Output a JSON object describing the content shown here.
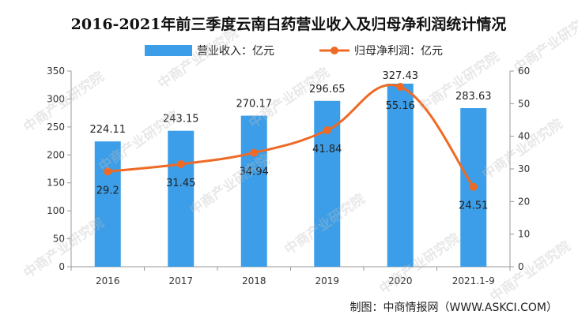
{
  "chart_data": {
    "type": "bar+line",
    "title": "2016-2021年前三季度云南白药营业收入及归母净利润统计情况",
    "categories": [
      "2016",
      "2017",
      "2018",
      "2019",
      "2020",
      "2021.1-9"
    ],
    "series": [
      {
        "name": "营业收入：亿元",
        "type": "bar",
        "axis": "left",
        "color": "#3c9ee8",
        "values": [
          224.11,
          243.15,
          270.17,
          296.65,
          327.43,
          283.63
        ]
      },
      {
        "name": "归母净利润：亿元",
        "type": "line",
        "axis": "right",
        "color": "#ef6a26",
        "values": [
          29.2,
          31.45,
          34.94,
          41.84,
          55.16,
          24.51
        ]
      }
    ],
    "value_labels": {
      "bar": [
        "224.11",
        "243.15",
        "270.17",
        "296.65",
        "327.43",
        "283.63"
      ],
      "line": [
        "29.2",
        "31.45",
        "34.94",
        "41.84",
        "55.16",
        "24.51"
      ]
    },
    "y_left": {
      "min": 0,
      "max": 350,
      "ticks": [
        "0",
        "50",
        "100",
        "150",
        "200",
        "250",
        "300",
        "350"
      ]
    },
    "y_right": {
      "min": 0,
      "max": 60,
      "ticks": [
        "0",
        "10",
        "20",
        "30",
        "40",
        "50",
        "60"
      ]
    },
    "legend_position": "top-center",
    "grid": false
  },
  "source": "制图：中商情报网（WWW.ASKCI.COM）",
  "watermark": "中商产业研究院"
}
